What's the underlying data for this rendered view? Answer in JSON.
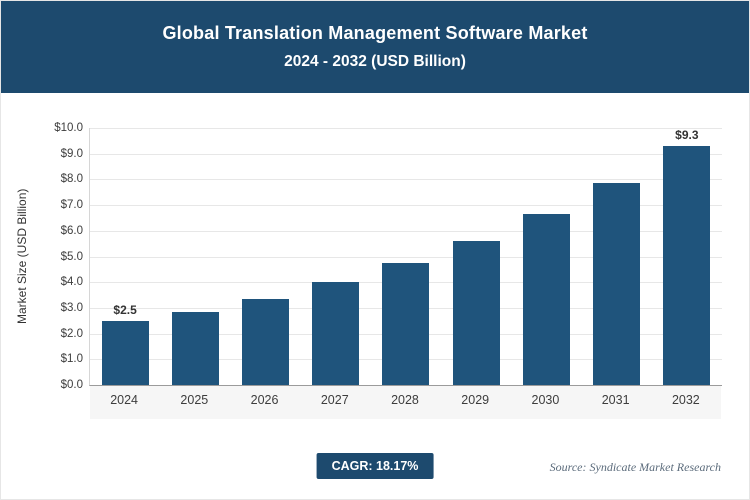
{
  "header": {
    "line1": "Global Translation Management Software Market",
    "line2": "2024 - 2032 (USD Billion)"
  },
  "footer": {
    "cagr_label": "CAGR: 18.17%",
    "source": "Source: Syndicate Market Research"
  },
  "colors": {
    "header_bg": "#1d4a6e",
    "bar": "#1f547c",
    "badge_bg": "#1d4a6e",
    "grid": "#e7e7e7",
    "axis_text": "#3d3d3d"
  },
  "chart_data": {
    "type": "bar",
    "title": "Global Translation Management Software Market 2024 - 2032 (USD Billion)",
    "categories": [
      "2024",
      "2025",
      "2026",
      "2027",
      "2028",
      "2029",
      "2030",
      "2031",
      "2032"
    ],
    "values": [
      2.5,
      2.85,
      3.35,
      4.0,
      4.75,
      5.6,
      6.65,
      7.85,
      9.3
    ],
    "point_labels": [
      "$2.5",
      null,
      null,
      null,
      null,
      null,
      null,
      null,
      "$9.3"
    ],
    "xlabel": "",
    "ylabel": "Market Size (USD Billion)",
    "ylim": [
      0,
      10
    ],
    "ytick_step": 1.0,
    "ytick_labels": [
      "$0.0",
      "$1.0",
      "$2.0",
      "$3.0",
      "$4.0",
      "$5.0",
      "$6.0",
      "$7.0",
      "$8.0",
      "$9.0",
      "$10.0"
    ],
    "grid": true,
    "legend": false,
    "cagr": "18.17%"
  }
}
